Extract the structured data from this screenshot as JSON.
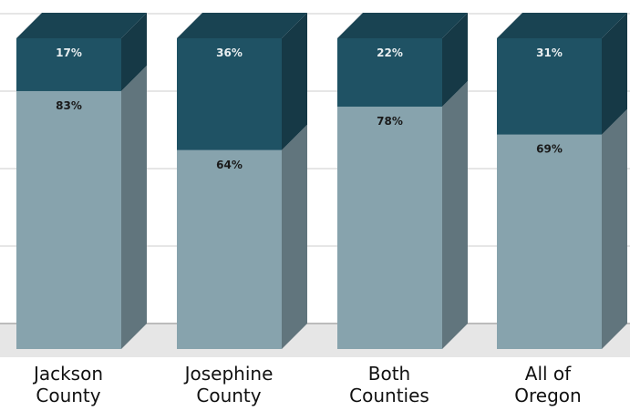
{
  "chart_data": {
    "type": "bar",
    "stacked": true,
    "three_d": true,
    "title": "",
    "xlabel": "",
    "ylabel": "",
    "ylim": [
      0,
      100
    ],
    "grid": true,
    "legend": "none",
    "categories": [
      [
        "Jackson",
        "County"
      ],
      [
        "Josephine",
        "County"
      ],
      [
        "Both",
        "Counties"
      ],
      [
        "All of",
        "Oregon"
      ]
    ],
    "series": [
      {
        "values": [
          83,
          64,
          78,
          69
        ],
        "labels": [
          "83%",
          "64%",
          "78%",
          "69%"
        ],
        "color": "#87a3ad"
      },
      {
        "values": [
          17,
          36,
          22,
          31
        ],
        "labels": [
          "17%",
          "36%",
          "22%",
          "31%"
        ],
        "color": "#1f5264"
      }
    ]
  }
}
